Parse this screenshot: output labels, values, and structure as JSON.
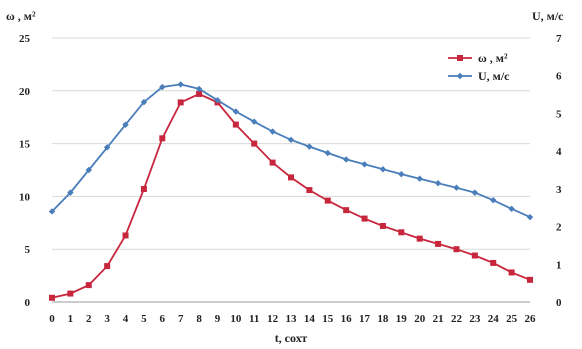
{
  "chart_data": {
    "type": "line",
    "x": [
      0,
      1,
      2,
      3,
      4,
      5,
      6,
      7,
      8,
      9,
      10,
      11,
      12,
      13,
      14,
      15,
      16,
      17,
      18,
      19,
      20,
      21,
      22,
      23,
      24,
      25,
      26
    ],
    "xlabel": "t, сохт",
    "ylabel_left": "ω , м²",
    "ylabel_right": "U, м/с",
    "ylim_left": [
      0,
      25
    ],
    "ylim_right": [
      0,
      7
    ],
    "y_ticks_left": [
      0,
      5,
      10,
      15,
      20,
      25
    ],
    "y_ticks_right": [
      0,
      1,
      2,
      3,
      4,
      5,
      6,
      7
    ],
    "legend_position": "top-right",
    "series": [
      {
        "name": "ω , м²",
        "axis": "left",
        "color": "#c8263c",
        "marker": "square",
        "values": [
          0.4,
          0.8,
          1.6,
          3.4,
          6.3,
          10.7,
          15.5,
          18.9,
          19.7,
          18.9,
          16.8,
          15.0,
          13.2,
          11.8,
          10.6,
          9.6,
          8.7,
          7.9,
          7.2,
          6.6,
          6.0,
          5.5,
          5.0,
          4.4,
          3.7,
          2.8,
          2.1
        ]
      },
      {
        "name": "U, м/с",
        "axis": "right",
        "color": "#4a7ebb",
        "marker": "diamond",
        "values": [
          2.4,
          2.9,
          3.5,
          4.1,
          4.7,
          5.3,
          5.7,
          5.77,
          5.65,
          5.35,
          5.05,
          4.78,
          4.52,
          4.3,
          4.12,
          3.95,
          3.78,
          3.65,
          3.52,
          3.39,
          3.27,
          3.15,
          3.03,
          2.9,
          2.7,
          2.47,
          2.25
        ]
      }
    ]
  }
}
